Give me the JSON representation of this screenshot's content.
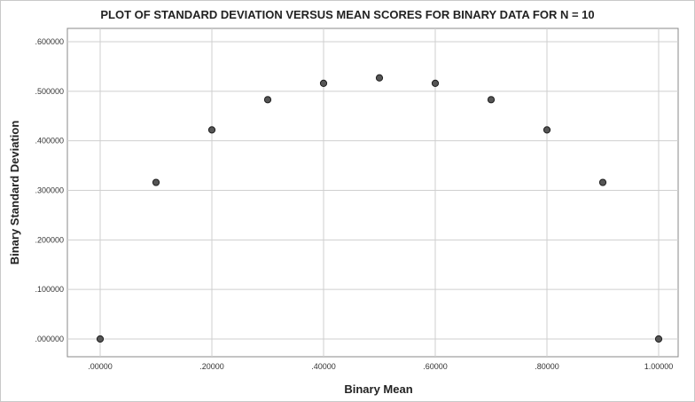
{
  "chart_data": {
    "type": "scatter",
    "title": "PLOT OF STANDARD DEVIATION VERSUS MEAN SCORES FOR BINARY DATA FOR N = 10",
    "xlabel": "Binary Mean",
    "ylabel": "Binary Standard Deviation",
    "xlim": [
      0,
      1
    ],
    "ylim": [
      0,
      0.6
    ],
    "grid": true,
    "x_ticks": [
      {
        "value": 0.0,
        "label": ".00000"
      },
      {
        "value": 0.2,
        "label": ".20000"
      },
      {
        "value": 0.4,
        "label": ".40000"
      },
      {
        "value": 0.6,
        "label": ".60000"
      },
      {
        "value": 0.8,
        "label": ".80000"
      },
      {
        "value": 1.0,
        "label": "1.00000"
      }
    ],
    "y_ticks": [
      {
        "value": 0.0,
        "label": ".000000"
      },
      {
        "value": 0.1,
        "label": ".100000"
      },
      {
        "value": 0.2,
        "label": ".200000"
      },
      {
        "value": 0.3,
        "label": ".300000"
      },
      {
        "value": 0.4,
        "label": ".400000"
      },
      {
        "value": 0.5,
        "label": ".500000"
      },
      {
        "value": 0.6,
        "label": ".600000"
      }
    ],
    "points": [
      {
        "x": 0.0,
        "y": 0.0
      },
      {
        "x": 0.1,
        "y": 0.316
      },
      {
        "x": 0.2,
        "y": 0.422
      },
      {
        "x": 0.3,
        "y": 0.483
      },
      {
        "x": 0.4,
        "y": 0.516
      },
      {
        "x": 0.5,
        "y": 0.527
      },
      {
        "x": 0.6,
        "y": 0.516
      },
      {
        "x": 0.7,
        "y": 0.483
      },
      {
        "x": 0.8,
        "y": 0.422
      },
      {
        "x": 0.9,
        "y": 0.316
      },
      {
        "x": 1.0,
        "y": 0.0
      }
    ],
    "colors": {
      "marker_fill": "#555555",
      "marker_stroke": "#1e1e1e",
      "grid": "#cfcfcf",
      "axis": "#888888",
      "text": "#222222"
    }
  }
}
